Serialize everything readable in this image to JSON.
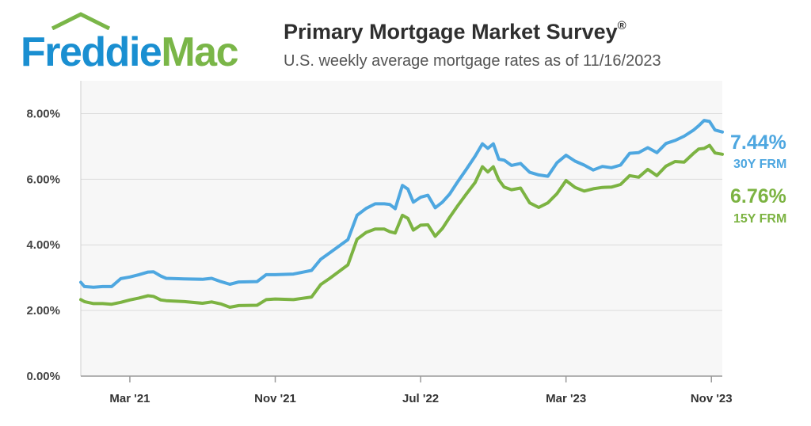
{
  "brand": {
    "name_part1": "Freddie",
    "name_part2": "Mac"
  },
  "header": {
    "title": "Primary Mortgage Market Survey",
    "title_mark": "®",
    "subtitle": "U.S. weekly average mortgage rates as of 11/16/2023"
  },
  "colors": {
    "frm30": "#4ea7e0",
    "frm15": "#7cb342",
    "grid": "#dcdcdc",
    "plot_bg": "#f7f7f7"
  },
  "chart_data": {
    "type": "line",
    "title": "Primary Mortgage Market Survey",
    "xlabel": "",
    "ylabel": "",
    "x_unit": "months since Jan 2021",
    "xlim": [
      -0.7,
      34.6
    ],
    "ylim": [
      0,
      9
    ],
    "yticks": [
      {
        "value": 0,
        "label": "0.00%"
      },
      {
        "value": 2,
        "label": "2.00%"
      },
      {
        "value": 4,
        "label": "4.00%"
      },
      {
        "value": 6,
        "label": "6.00%"
      },
      {
        "value": 8,
        "label": "8.00%"
      }
    ],
    "xticks": [
      {
        "value": 2,
        "label": "Mar '21"
      },
      {
        "value": 10,
        "label": "Nov '21"
      },
      {
        "value": 18,
        "label": "Jul '22"
      },
      {
        "value": 26,
        "label": "Mar '23"
      },
      {
        "value": 34,
        "label": "Nov '23"
      }
    ],
    "series": [
      {
        "name": "30Y FRM",
        "end_label": "7.44%",
        "color": "#4ea7e0",
        "points": [
          [
            -0.7,
            2.86
          ],
          [
            -0.5,
            2.73
          ],
          [
            0,
            2.71
          ],
          [
            0.5,
            2.73
          ],
          [
            1,
            2.73
          ],
          [
            1.5,
            2.97
          ],
          [
            2,
            3.02
          ],
          [
            2.5,
            3.09
          ],
          [
            3,
            3.17
          ],
          [
            3.3,
            3.18
          ],
          [
            3.7,
            3.05
          ],
          [
            4,
            2.98
          ],
          [
            5,
            2.96
          ],
          [
            6,
            2.95
          ],
          [
            6.5,
            2.98
          ],
          [
            7,
            2.88
          ],
          [
            7.5,
            2.8
          ],
          [
            8,
            2.87
          ],
          [
            9,
            2.88
          ],
          [
            9.5,
            3.09
          ],
          [
            10,
            3.09
          ],
          [
            11,
            3.11
          ],
          [
            12,
            3.22
          ],
          [
            12.5,
            3.56
          ],
          [
            13,
            3.76
          ],
          [
            14,
            4.16
          ],
          [
            14.5,
            4.9
          ],
          [
            15,
            5.11
          ],
          [
            15.5,
            5.25
          ],
          [
            16,
            5.25
          ],
          [
            16.3,
            5.23
          ],
          [
            16.6,
            5.1
          ],
          [
            17,
            5.81
          ],
          [
            17.3,
            5.7
          ],
          [
            17.6,
            5.3
          ],
          [
            18,
            5.45
          ],
          [
            18.4,
            5.51
          ],
          [
            18.8,
            5.13
          ],
          [
            19.2,
            5.3
          ],
          [
            19.6,
            5.55
          ],
          [
            20,
            5.89
          ],
          [
            20.5,
            6.29
          ],
          [
            21,
            6.7
          ],
          [
            21.4,
            7.08
          ],
          [
            21.7,
            6.94
          ],
          [
            22,
            7.08
          ],
          [
            22.3,
            6.61
          ],
          [
            22.6,
            6.58
          ],
          [
            23,
            6.42
          ],
          [
            23.5,
            6.48
          ],
          [
            24,
            6.21
          ],
          [
            24.5,
            6.13
          ],
          [
            25,
            6.09
          ],
          [
            25.5,
            6.5
          ],
          [
            26,
            6.73
          ],
          [
            26.5,
            6.55
          ],
          [
            27,
            6.43
          ],
          [
            27.5,
            6.28
          ],
          [
            28,
            6.39
          ],
          [
            28.5,
            6.35
          ],
          [
            29,
            6.43
          ],
          [
            29.5,
            6.79
          ],
          [
            30,
            6.81
          ],
          [
            30.5,
            6.96
          ],
          [
            31,
            6.81
          ],
          [
            31.5,
            7.09
          ],
          [
            32,
            7.18
          ],
          [
            32.5,
            7.31
          ],
          [
            33,
            7.49
          ],
          [
            33.3,
            7.63
          ],
          [
            33.6,
            7.79
          ],
          [
            33.9,
            7.76
          ],
          [
            34.2,
            7.5
          ],
          [
            34.6,
            7.44
          ]
        ]
      },
      {
        "name": "15Y FRM",
        "end_label": "6.76%",
        "color": "#7cb342",
        "points": [
          [
            -0.7,
            2.33
          ],
          [
            -0.5,
            2.27
          ],
          [
            0,
            2.21
          ],
          [
            0.5,
            2.21
          ],
          [
            1,
            2.19
          ],
          [
            1.5,
            2.25
          ],
          [
            2,
            2.32
          ],
          [
            2.5,
            2.38
          ],
          [
            3,
            2.45
          ],
          [
            3.3,
            2.43
          ],
          [
            3.7,
            2.32
          ],
          [
            4,
            2.3
          ],
          [
            5,
            2.27
          ],
          [
            6,
            2.22
          ],
          [
            6.5,
            2.26
          ],
          [
            7,
            2.2
          ],
          [
            7.5,
            2.1
          ],
          [
            8,
            2.15
          ],
          [
            9,
            2.16
          ],
          [
            9.5,
            2.33
          ],
          [
            10,
            2.35
          ],
          [
            11,
            2.33
          ],
          [
            12,
            2.41
          ],
          [
            12.5,
            2.79
          ],
          [
            13,
            2.98
          ],
          [
            14,
            3.39
          ],
          [
            14.5,
            4.17
          ],
          [
            15,
            4.38
          ],
          [
            15.5,
            4.48
          ],
          [
            16,
            4.48
          ],
          [
            16.3,
            4.4
          ],
          [
            16.6,
            4.36
          ],
          [
            17,
            4.9
          ],
          [
            17.3,
            4.81
          ],
          [
            17.6,
            4.45
          ],
          [
            18,
            4.6
          ],
          [
            18.4,
            4.61
          ],
          [
            18.8,
            4.26
          ],
          [
            19.2,
            4.5
          ],
          [
            19.6,
            4.84
          ],
          [
            20,
            5.16
          ],
          [
            20.5,
            5.54
          ],
          [
            21,
            5.9
          ],
          [
            21.4,
            6.38
          ],
          [
            21.7,
            6.22
          ],
          [
            22,
            6.38
          ],
          [
            22.3,
            5.98
          ],
          [
            22.6,
            5.76
          ],
          [
            23,
            5.68
          ],
          [
            23.5,
            5.73
          ],
          [
            24,
            5.28
          ],
          [
            24.5,
            5.14
          ],
          [
            25,
            5.28
          ],
          [
            25.5,
            5.56
          ],
          [
            26,
            5.96
          ],
          [
            26.5,
            5.75
          ],
          [
            27,
            5.64
          ],
          [
            27.5,
            5.71
          ],
          [
            28,
            5.75
          ],
          [
            28.5,
            5.76
          ],
          [
            29,
            5.84
          ],
          [
            29.5,
            6.11
          ],
          [
            30,
            6.06
          ],
          [
            30.5,
            6.3
          ],
          [
            31,
            6.11
          ],
          [
            31.5,
            6.4
          ],
          [
            32,
            6.54
          ],
          [
            32.5,
            6.52
          ],
          [
            33,
            6.78
          ],
          [
            33.3,
            6.92
          ],
          [
            33.6,
            6.94
          ],
          [
            33.9,
            7.03
          ],
          [
            34.2,
            6.8
          ],
          [
            34.6,
            6.76
          ]
        ]
      }
    ]
  }
}
